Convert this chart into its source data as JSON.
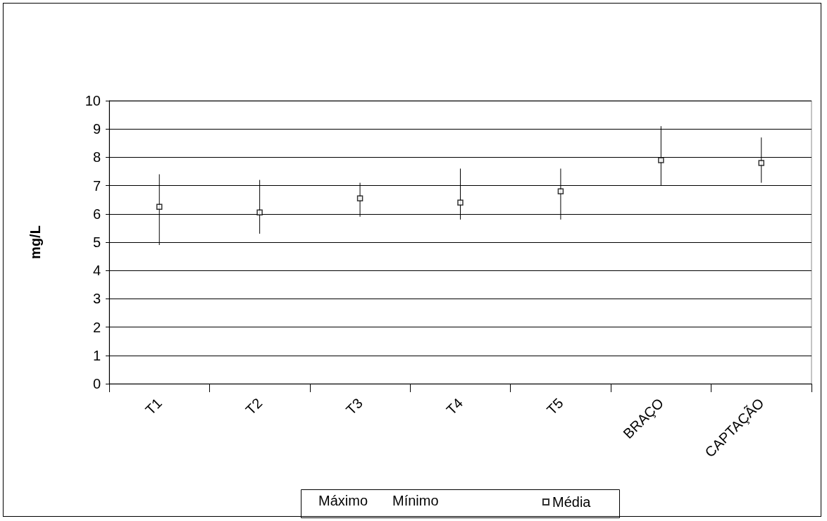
{
  "chart_data": {
    "type": "scatter",
    "ylabel": "mg/L",
    "categories": [
      "T1",
      "T2",
      "T3",
      "T4",
      "T5",
      "BRAÇO",
      "CAPTAÇÃO"
    ],
    "series": [
      {
        "name": "Média",
        "color": "#000000",
        "marker": "square",
        "values": [
          6.25,
          6.05,
          6.55,
          6.4,
          6.8,
          7.9,
          7.8
        ],
        "errors": [
          [
            4.9,
            7.4
          ],
          [
            5.3,
            7.2
          ],
          [
            5.9,
            7.1
          ],
          [
            5.8,
            7.6
          ],
          [
            5.8,
            7.6
          ],
          [
            7.0,
            9.1
          ],
          [
            7.1,
            8.7
          ]
        ]
      }
    ],
    "annotations": [
      "Máximo",
      "Mínimo"
    ],
    "ylim": [
      0,
      10
    ],
    "yticks": [
      0,
      1,
      2,
      3,
      4,
      5,
      6,
      7,
      8,
      9,
      10
    ],
    "grid": "y",
    "legend": "bottom"
  }
}
